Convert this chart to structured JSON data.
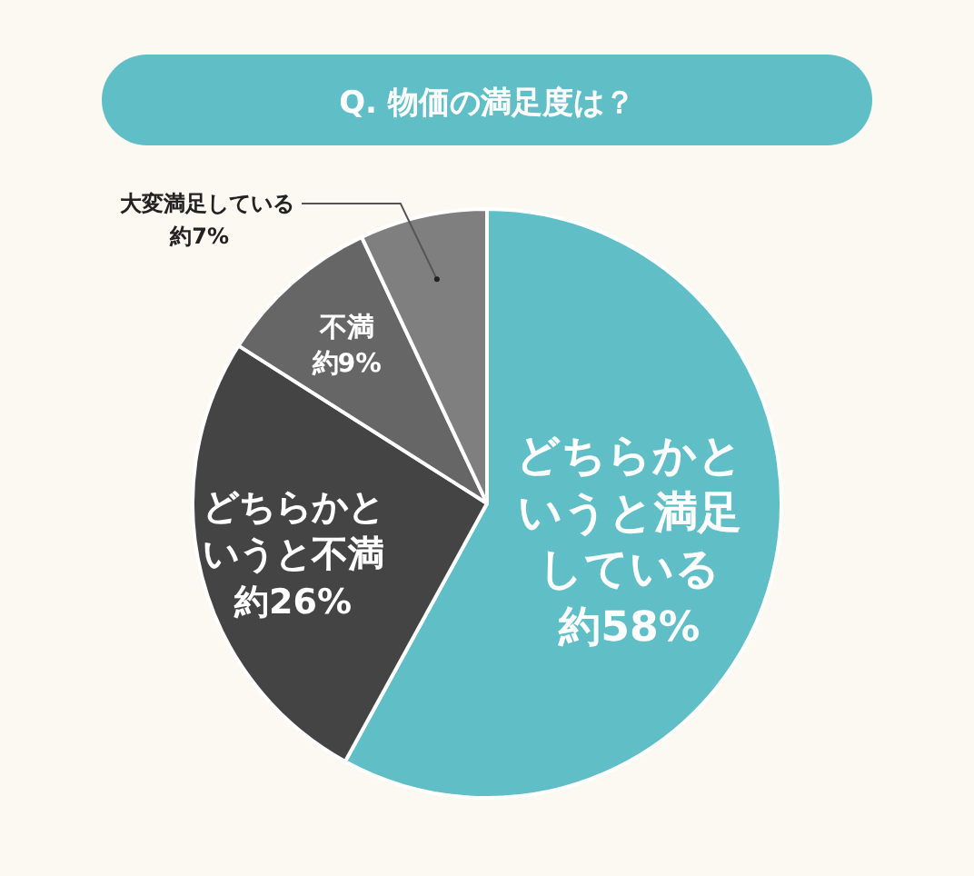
{
  "chart_data": {
    "type": "pie",
    "title": "Q. 物価の満足度は？",
    "categories": [
      "どちらかというと満足している",
      "どちらかというと不満",
      "不満",
      "大変満足している"
    ],
    "values": [
      58,
      26,
      9,
      7
    ],
    "value_labels": [
      "約58%",
      "約26%",
      "約9%",
      "約7%"
    ],
    "colors": [
      "#5fbec6",
      "#444444",
      "#666666",
      "#7f7f7f"
    ]
  }
}
